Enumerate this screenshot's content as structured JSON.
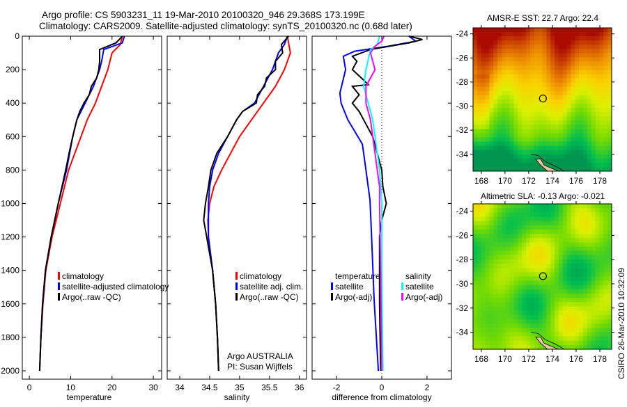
{
  "figure": {
    "title_line1": "Argo profile: CS 5903231_11 19-Mar-2010 20100320_946 29.368S 173.199E",
    "title_line2": "Climatology: CARS2009. Satellite-adjusted climatology: synTS_20100320.nc (0.68d later)",
    "credit_text": "Argo AUSTRALIA",
    "pi_text": "PI: Susan Wijffels",
    "timestamp": "CSIRO 26-Mar-2010 10:32:09"
  },
  "colors": {
    "climatology": "#ff0000",
    "satellite": "#0000ff",
    "argo": "#000000",
    "sal_satellite": "#00ffff",
    "sal_argo": "#ff00ff"
  },
  "chart_data": [
    {
      "type": "line",
      "name": "temperature-profile",
      "xlabel": "temperature",
      "ylabel": "",
      "xlim": [
        -1.7,
        32
      ],
      "ylim": [
        0,
        2050
      ],
      "xticks": [
        0,
        10,
        20,
        30
      ],
      "yticks": [
        0,
        200,
        400,
        600,
        800,
        1000,
        1200,
        1400,
        1600,
        1800,
        2000
      ],
      "legend": [
        "climatology",
        "satellite-adjusted climatology",
        "Argo(..raw -QC)"
      ],
      "series": [
        {
          "name": "climatology",
          "color": "#ff0000",
          "depth": [
            0,
            50,
            100,
            200,
            300,
            400,
            500,
            600,
            700,
            800,
            1000,
            1200,
            1400,
            1600,
            1800,
            2000
          ],
          "values": [
            22.5,
            22,
            20,
            19,
            17.5,
            16,
            14,
            12.5,
            11,
            9.5,
            7.5,
            5.5,
            4,
            3.3,
            2.8,
            2.5
          ]
        },
        {
          "name": "satellite-adjusted climatology",
          "color": "#0000ff",
          "depth": [
            0,
            40,
            80,
            150,
            200,
            300,
            400,
            500,
            600,
            800,
            1000,
            1200,
            1400,
            1600,
            1800,
            2000
          ],
          "values": [
            23,
            22.5,
            18,
            17.5,
            17,
            15.5,
            13.5,
            11.5,
            10.5,
            9,
            7,
            5.3,
            3.9,
            3.2,
            2.8,
            2.5
          ]
        },
        {
          "name": "Argo(..raw -QC)",
          "color": "#000000",
          "depth": [
            0,
            40,
            80,
            150,
            200,
            250,
            300,
            350,
            400,
            450,
            500,
            600,
            700,
            800,
            1000,
            1200,
            1400,
            1600,
            1800,
            2000
          ],
          "values": [
            22.5,
            21,
            17,
            17,
            16.8,
            16.3,
            15,
            14.5,
            13.2,
            12.2,
            11.5,
            10.5,
            9.6,
            8.8,
            7,
            5.3,
            3.9,
            3.2,
            2.8,
            2.5
          ]
        }
      ]
    },
    {
      "type": "line",
      "name": "salinity-profile",
      "xlabel": "salinity",
      "ylabel": "",
      "xlim": [
        33.79,
        36.12
      ],
      "ylim": [
        0,
        2050
      ],
      "xticks": [
        34,
        34.5,
        35,
        35.5,
        36
      ],
      "legend": [
        "climatology",
        "satellite adj. clim.",
        "Argo(..raw -QC)"
      ],
      "series": [
        {
          "name": "climatology",
          "color": "#ff0000",
          "depth": [
            0,
            100,
            200,
            300,
            400,
            500,
            600,
            700,
            800,
            900,
            1000,
            1100,
            1200,
            1400,
            1600,
            1800,
            2000
          ],
          "values": [
            35.8,
            35.85,
            35.75,
            35.6,
            35.4,
            35.2,
            35.0,
            34.85,
            34.7,
            34.57,
            34.5,
            34.47,
            34.48,
            34.55,
            34.6,
            34.63,
            34.65
          ]
        },
        {
          "name": "satellite adj. clim.",
          "color": "#0000ff",
          "depth": [
            0,
            50,
            100,
            200,
            300,
            400,
            450,
            500,
            600,
            700,
            800,
            900,
            1000,
            1200,
            1400,
            1600,
            1800,
            2000
          ],
          "values": [
            35.8,
            35.75,
            35.65,
            35.55,
            35.4,
            35.25,
            35.05,
            34.95,
            34.8,
            34.65,
            34.55,
            34.5,
            34.48,
            34.48,
            34.55,
            34.6,
            34.63,
            34.65
          ]
        },
        {
          "name": "Argo(..raw -QC)",
          "color": "#000000",
          "depth": [
            0,
            50,
            100,
            150,
            200,
            250,
            300,
            350,
            400,
            450,
            500,
            600,
            700,
            800,
            900,
            1000,
            1100,
            1200,
            1300,
            1400,
            1600,
            1800,
            2000
          ],
          "values": [
            35.82,
            35.7,
            35.72,
            35.6,
            35.6,
            35.45,
            35.42,
            35.3,
            35.28,
            35.05,
            34.95,
            34.8,
            34.62,
            34.52,
            34.48,
            34.43,
            34.4,
            34.45,
            34.5,
            34.55,
            34.6,
            34.63,
            34.65
          ]
        }
      ]
    },
    {
      "type": "line",
      "name": "difference-profile",
      "xlabel": "difference from climatology",
      "ylabel": "",
      "xlim": [
        -3.08,
        3.08
      ],
      "ylim": [
        0,
        2050
      ],
      "xticks": [
        -2,
        0,
        2
      ],
      "legend_temperature_title": "temperature",
      "legend_salinity_title": "salinity",
      "legend": [
        "satellite",
        "Argo(-adj)",
        "satellite",
        "Argo(-adj)"
      ],
      "series": [
        {
          "name": "temperature satellite",
          "color": "#0000ff",
          "depth": [
            0,
            30,
            60,
            90,
            120,
            200,
            340,
            400,
            500,
            645,
            700,
            800,
            980,
            1200,
            1575,
            2000
          ],
          "values": [
            1.2,
            1.5,
            0.3,
            -1.2,
            -1.7,
            -1.6,
            -1.85,
            -1.8,
            -1.5,
            -0.86,
            -0.8,
            -0.7,
            -0.52,
            -0.45,
            -0.34,
            -0.15
          ]
        },
        {
          "name": "temperature Argo(-adj)",
          "color": "#000000",
          "depth": [
            0,
            20,
            40,
            80,
            120,
            150,
            200,
            250,
            290,
            300,
            350,
            400,
            450,
            500,
            550,
            600,
            700,
            800,
            900,
            1000,
            1100,
            1200,
            1600,
            2000
          ],
          "values": [
            1.2,
            1.8,
            1.2,
            -0.5,
            -1.3,
            -1.1,
            -1.3,
            -0.9,
            -0.6,
            -1.3,
            -1.0,
            -1.3,
            -1.0,
            -0.8,
            -0.6,
            -0.4,
            -0.2,
            0,
            0.05,
            0.2,
            0,
            -0.1,
            -0.1,
            -0.05
          ]
        },
        {
          "name": "salinity satellite",
          "color": "#00ffff",
          "depth": [
            0,
            50,
            80,
            200,
            300,
            400,
            500,
            600,
            800,
            1000,
            1400,
            2000
          ],
          "values": [
            -0.1,
            -0.2,
            -0.5,
            -0.7,
            -0.8,
            -0.6,
            -0.4,
            -0.3,
            -0.1,
            0,
            0,
            0.05
          ]
        },
        {
          "name": "salinity Argo(-adj)",
          "color": "#ff00ff",
          "depth": [
            0,
            30,
            60,
            100,
            200,
            250,
            300,
            400,
            500,
            700,
            900,
            1000,
            1400,
            2000
          ],
          "values": [
            0.1,
            0,
            -0.3,
            -0.5,
            -0.3,
            -0.5,
            -0.7,
            -0.7,
            -0.5,
            -0.3,
            -0.1,
            -0.1,
            -0.05,
            0
          ]
        }
      ]
    },
    {
      "type": "heatmap",
      "name": "sst-map",
      "title": "AMSR-E SST: 22.7 Argo: 22.4",
      "xlim": [
        167.3,
        179.0
      ],
      "ylim": [
        -35.4,
        -23.5
      ],
      "xticks": [
        168,
        170,
        172,
        174,
        176,
        178
      ],
      "yticks": [
        -24,
        -26,
        -28,
        -30,
        -32,
        -34
      ],
      "argo_position": {
        "lon": 173.199,
        "lat": -29.368
      }
    },
    {
      "type": "heatmap",
      "name": "sla-map",
      "title": "Altimetric SLA: -0.13 Argo: -0.021",
      "xlim": [
        167.3,
        179.0
      ],
      "ylim": [
        -35.4,
        -23.4
      ],
      "xticks": [
        168,
        170,
        172,
        174,
        176,
        178
      ],
      "yticks": [
        -24,
        -26,
        -28,
        -30,
        -32,
        -34
      ],
      "argo_position": {
        "lon": 173.199,
        "lat": -29.368
      }
    }
  ]
}
